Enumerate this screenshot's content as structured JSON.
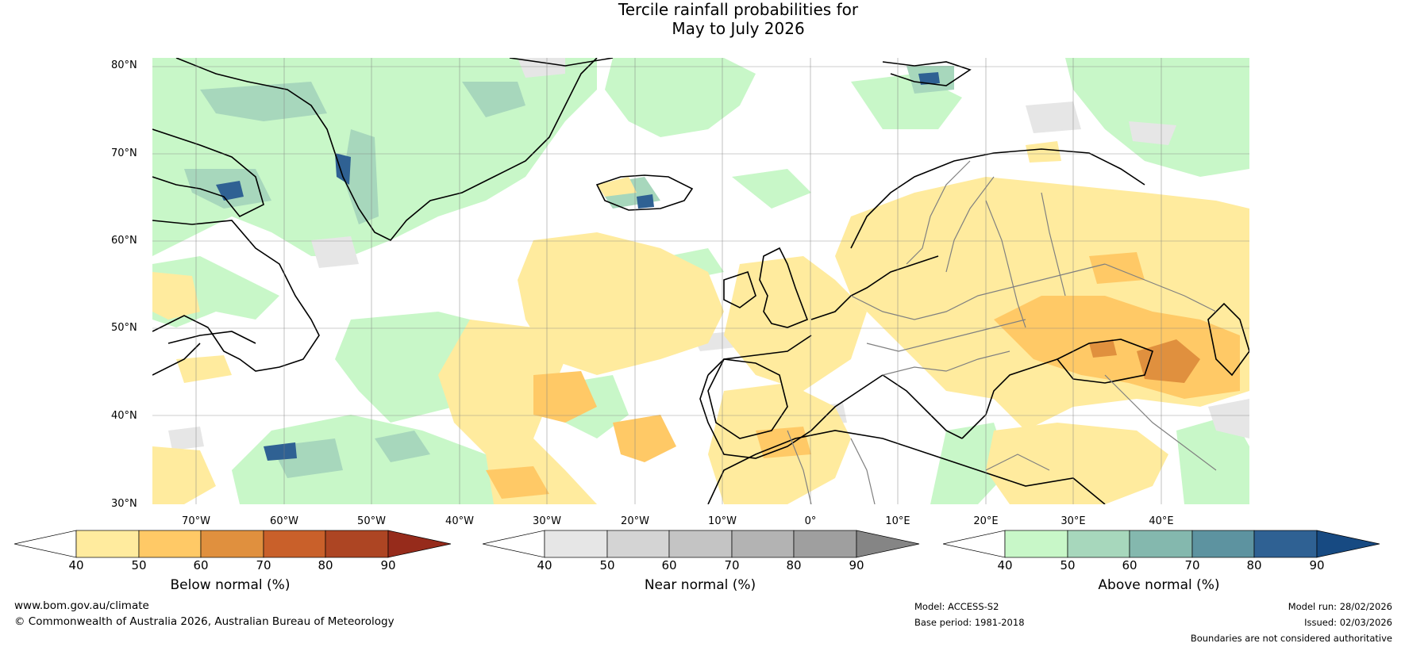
{
  "title": {
    "line1": "Tercile rainfall probabilities for",
    "line2": "May to July 2026"
  },
  "map": {
    "lat_labels": [
      "80°N",
      "70°N",
      "60°N",
      "50°N",
      "40°N",
      "30°N"
    ],
    "lon_labels": [
      "70°W",
      "60°W",
      "50°W",
      "40°W",
      "30°W",
      "20°W",
      "10°W",
      "0°",
      "10°E",
      "20°E",
      "30°E",
      "40°E"
    ]
  },
  "colorbars": {
    "below": {
      "title": "Below normal (%)",
      "ticks": [
        "40",
        "50",
        "60",
        "70",
        "80",
        "90"
      ],
      "colors": [
        "#ffffff",
        "#ffeb9e",
        "#ffc966",
        "#e0903e",
        "#c9602a",
        "#ad4523",
        "#962b1b"
      ]
    },
    "near": {
      "title": "Near normal (%)",
      "ticks": [
        "40",
        "50",
        "60",
        "70",
        "80",
        "90"
      ],
      "colors": [
        "#ffffff",
        "#e6e6e6",
        "#d4d4d4",
        "#c4c4c4",
        "#b3b3b3",
        "#9f9f9f",
        "#858585"
      ]
    },
    "above": {
      "title": "Above normal (%)",
      "ticks": [
        "40",
        "50",
        "60",
        "70",
        "80",
        "90"
      ],
      "colors": [
        "#ffffff",
        "#c8f7c8",
        "#a7d7bc",
        "#84b8ae",
        "#5d93a0",
        "#2f6193",
        "#174a82"
      ]
    }
  },
  "footer": {
    "website": "www.bom.gov.au/climate",
    "copyright": "© Commonwealth of Australia 2026, Australian Bureau of Meteorology",
    "model": "Model: ACCESS-S2",
    "base_period": "Base period: 1981-2018",
    "model_run": "Model run: 28/02/2026",
    "issued": "Issued: 02/03/2026",
    "disclaimer": "Boundaries are not considered authoritative"
  }
}
